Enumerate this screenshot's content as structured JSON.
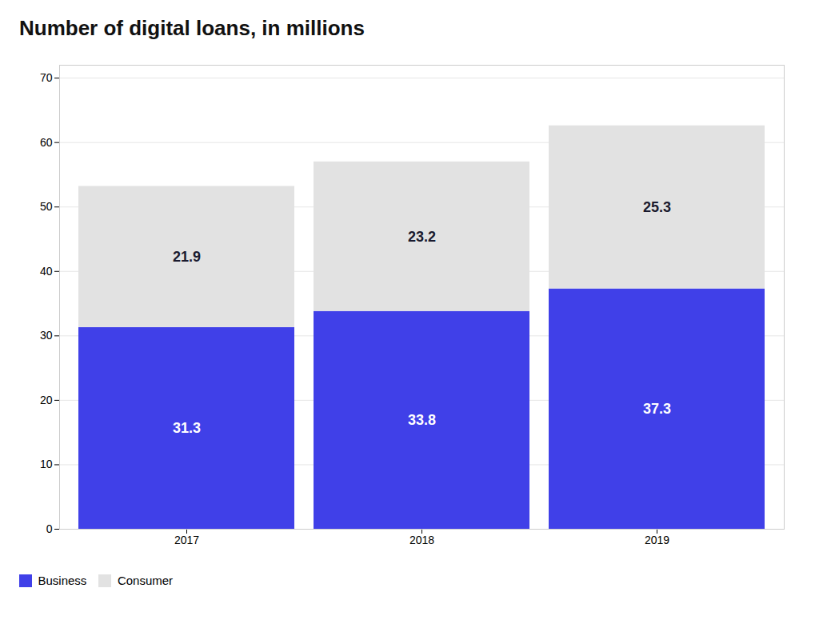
{
  "chart_data": {
    "type": "bar",
    "title": "Number of digital loans, in millions",
    "categories": [
      "2017",
      "2018",
      "2019"
    ],
    "series": [
      {
        "name": "Business",
        "color": "#4040e8",
        "values": [
          31.3,
          33.8,
          37.3
        ]
      },
      {
        "name": "Consumer",
        "color": "#e2e2e2",
        "values": [
          21.9,
          23.2,
          25.3
        ]
      }
    ],
    "stacked": true,
    "ylim": [
      0,
      72
    ],
    "yticks": [
      0,
      10,
      20,
      30,
      40,
      50,
      60,
      70
    ],
    "grid": true,
    "data_labels": true,
    "legend": "bottom"
  }
}
